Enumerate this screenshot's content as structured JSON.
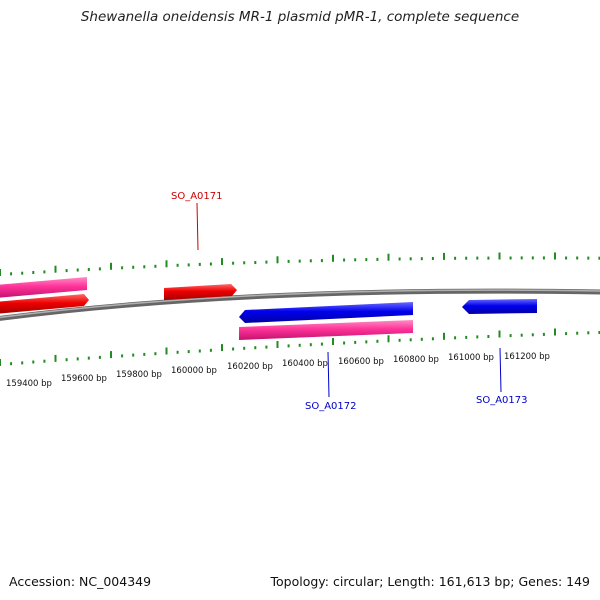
{
  "title": "Shewanella oneidensis MR-1 plasmid pMR-1, complete sequence",
  "footer": {
    "accession": "Accession: NC_004349",
    "summary": "Topology: circular; Length: 161,613 bp; Genes: 149"
  },
  "colors": {
    "backbone": "#888888",
    "tick_outer": "#228B22",
    "tick_inner": "#228B22",
    "forward_cds": "#ee0000",
    "reverse_cds": "#0000ee",
    "rna_or_other": "#ff3399",
    "label_forward": "#cc0000",
    "label_reverse": "#0000cc"
  },
  "ticks": {
    "labels": [
      "159400 bp",
      "159600 bp",
      "159800 bp",
      "160000 bp",
      "160200 bp",
      "160400 bp",
      "160600 bp",
      "160800 bp",
      "161000 bp",
      "161200 bp"
    ]
  },
  "genes": [
    {
      "name": "SO_A0171",
      "strand": "forward"
    },
    {
      "name": "SO_A0172",
      "strand": "reverse"
    },
    {
      "name": "SO_A0173",
      "strand": "reverse"
    }
  ]
}
